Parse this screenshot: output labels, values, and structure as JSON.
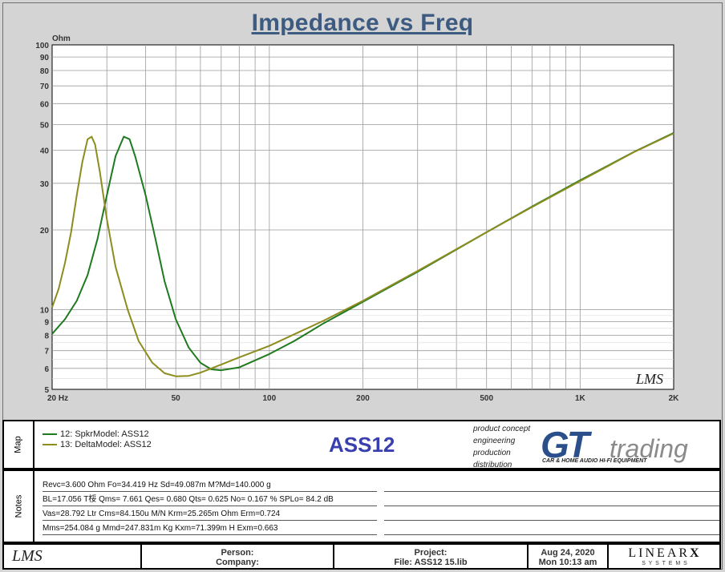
{
  "title": "Impedance vs Freq",
  "chart_data": {
    "type": "line",
    "title": "Impedance vs Freq",
    "ylabel": "Ohm",
    "xlabel": "",
    "x_scale": "log",
    "y_scale": "log",
    "xlim": [
      20,
      2000
    ],
    "ylim": [
      5,
      100
    ],
    "grid": true,
    "x_tick_labels": [
      {
        "value": 20,
        "label": "20  Hz"
      },
      {
        "value": 50,
        "label": "50"
      },
      {
        "value": 100,
        "label": "100"
      },
      {
        "value": 200,
        "label": "200"
      },
      {
        "value": 500,
        "label": "500"
      },
      {
        "value": 1000,
        "label": "1K"
      },
      {
        "value": 2000,
        "label": "2K"
      }
    ],
    "y_tick_labels": [
      5,
      6,
      7,
      8,
      9,
      10,
      20,
      30,
      40,
      50,
      60,
      70,
      80,
      90,
      100
    ],
    "series": [
      {
        "name": "12: SpkrModel: ASS12",
        "color": "#1f7a1f",
        "points": [
          [
            20,
            8.1
          ],
          [
            22,
            9.2
          ],
          [
            24,
            10.8
          ],
          [
            26,
            13.5
          ],
          [
            28,
            18.5
          ],
          [
            30,
            27
          ],
          [
            32,
            38
          ],
          [
            34,
            45
          ],
          [
            35.5,
            44
          ],
          [
            37,
            38
          ],
          [
            40,
            27
          ],
          [
            43,
            18.5
          ],
          [
            46,
            12.8
          ],
          [
            50,
            9.2
          ],
          [
            55,
            7.2
          ],
          [
            60,
            6.3
          ],
          [
            65,
            5.95
          ],
          [
            70,
            5.9
          ],
          [
            80,
            6.05
          ],
          [
            100,
            6.8
          ],
          [
            120,
            7.6
          ],
          [
            150,
            8.9
          ],
          [
            200,
            10.7
          ],
          [
            300,
            13.9
          ],
          [
            500,
            19.6
          ],
          [
            700,
            24.5
          ],
          [
            1000,
            30.8
          ],
          [
            1500,
            39.6
          ],
          [
            2000,
            46.5
          ]
        ]
      },
      {
        "name": "13: DeltaModel: ASS12",
        "color": "#8c8c1f",
        "points": [
          [
            20,
            10.2
          ],
          [
            21,
            12
          ],
          [
            22,
            15
          ],
          [
            23,
            19.5
          ],
          [
            24,
            27
          ],
          [
            25,
            36
          ],
          [
            26,
            44
          ],
          [
            26.8,
            45
          ],
          [
            27.5,
            42
          ],
          [
            28.5,
            33
          ],
          [
            30,
            22
          ],
          [
            32,
            14.5
          ],
          [
            35,
            10
          ],
          [
            38,
            7.6
          ],
          [
            42,
            6.3
          ],
          [
            46,
            5.75
          ],
          [
            50,
            5.6
          ],
          [
            55,
            5.62
          ],
          [
            60,
            5.78
          ],
          [
            70,
            6.2
          ],
          [
            80,
            6.6
          ],
          [
            100,
            7.3
          ],
          [
            150,
            9.1
          ],
          [
            200,
            10.8
          ],
          [
            300,
            14.0
          ],
          [
            500,
            19.6
          ],
          [
            700,
            24.4
          ],
          [
            1000,
            30.6
          ],
          [
            1500,
            39.5
          ],
          [
            2000,
            46.3
          ]
        ]
      }
    ]
  },
  "watermark": "LMS",
  "map_section": {
    "label": "Map",
    "legend": [
      {
        "label": "12: SpkrModel: ASS12",
        "color": "#1f7a1f"
      },
      {
        "label": "13: DeltaModel: ASS12",
        "color": "#8c8c1f"
      }
    ],
    "model_name": "ASS12",
    "logo": {
      "words": [
        "product concept",
        "engineering",
        "production",
        "distribution"
      ],
      "big": "GT",
      "trading": "trading",
      "tagline": "CAR & HOME AUDIO HI-FI EQUIPMENT"
    }
  },
  "notes_section": {
    "label": "Notes",
    "lines": [
      "Revc=3.600 Ohm  Fo=34.419 Hz  Sd=49.087m M?Md=140.000 g",
      "BL=17.056 T桵  Qms= 7.661  Qes= 0.680  Qts= 0.625  No= 0.167 %  SPLo= 84.2 dB",
      "Vas=28.792 Ltr  Cms=84.150u M/N  Krm=25.265m Ohm  Erm=0.724",
      "Mms=254.084 g  Mmd=247.831m Kg  Kxm=71.399m H  Exm=0.663"
    ]
  },
  "footer": {
    "logo": "LMS",
    "person_label": "Person:",
    "company_label": "Company:",
    "project_label": "Project:",
    "file_label": "File: ASS12 15.lib",
    "date": "Aug 24, 2020",
    "time": "Mon 10:13 am",
    "brand": "LINEAR",
    "brand_x": "X",
    "brand_sub": "S Y S T E M S"
  }
}
